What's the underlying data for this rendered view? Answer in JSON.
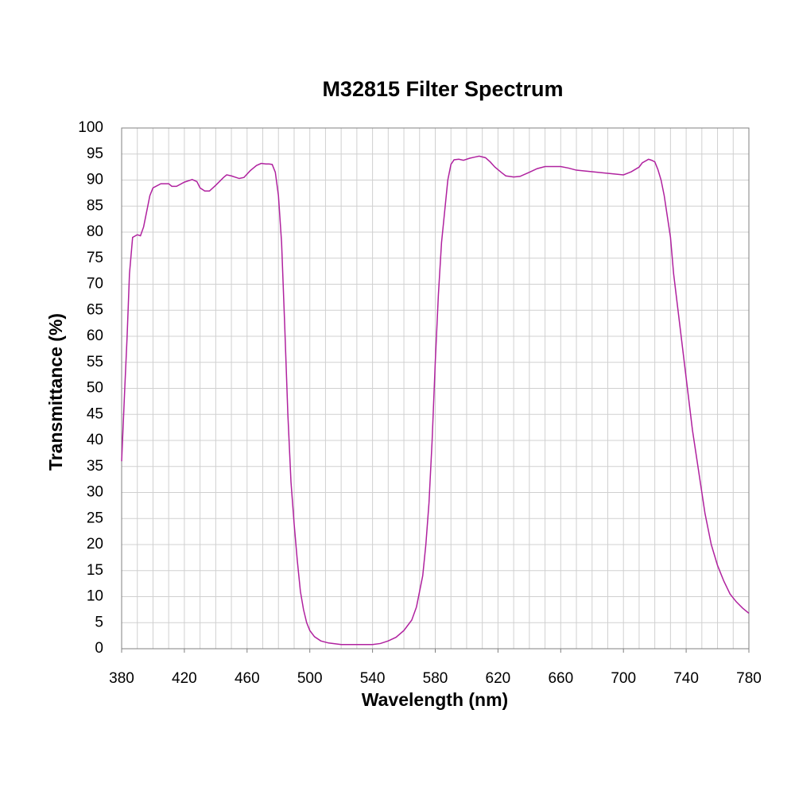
{
  "chart_data": {
    "type": "line",
    "title": "M32815 Filter Spectrum",
    "x_label": "Wavelength (nm)",
    "y_label": "Transmittance (%)",
    "xlim": [
      380,
      780
    ],
    "ylim": [
      0,
      100
    ],
    "xticks": [
      380,
      420,
      460,
      500,
      540,
      580,
      620,
      660,
      700,
      740,
      780
    ],
    "yticks": [
      0,
      5,
      10,
      15,
      20,
      25,
      30,
      35,
      40,
      45,
      50,
      55,
      60,
      65,
      70,
      75,
      80,
      85,
      90,
      95,
      100
    ],
    "xgrid": [
      380,
      390,
      400,
      410,
      420,
      430,
      440,
      450,
      460,
      470,
      480,
      490,
      500,
      510,
      520,
      530,
      540,
      550,
      560,
      570,
      580,
      590,
      600,
      610,
      620,
      630,
      640,
      650,
      660,
      670,
      680,
      690,
      700,
      710,
      720,
      730,
      740,
      750,
      760,
      770,
      780
    ],
    "grid": true,
    "series": [
      {
        "color": "#b0229f",
        "x": [
          380,
          382,
          383.5,
          385,
          387,
          390,
          392,
          394,
          396,
          398,
          400,
          405,
          410,
          412,
          415,
          420,
          425,
          428,
          430,
          433,
          436,
          440,
          445,
          447,
          450,
          455,
          458,
          462,
          466,
          469,
          472,
          474,
          476,
          478,
          480,
          482,
          484,
          486,
          488,
          490,
          492,
          494,
          496,
          498,
          500,
          503,
          507,
          512,
          520,
          530,
          540,
          545,
          550,
          555,
          560,
          565,
          568,
          570,
          572,
          574,
          576,
          578,
          580,
          582,
          584,
          586,
          588,
          590,
          592,
          595,
          598,
          602,
          605,
          608,
          612,
          615,
          618,
          622,
          625,
          630,
          634,
          640,
          645,
          650,
          660,
          665,
          670,
          680,
          690,
          700,
          705,
          710,
          712,
          716,
          718,
          720,
          722,
          724,
          726,
          728,
          730,
          732,
          734,
          736,
          738,
          740,
          742,
          744,
          746,
          748,
          750,
          752,
          754,
          756,
          758,
          760,
          764,
          768,
          772,
          776,
          780
        ],
        "values": [
          36,
          50,
          60,
          72,
          79,
          79.5,
          79.3,
          81,
          84,
          87,
          88.5,
          89.3,
          89.3,
          88.8,
          88.8,
          89.6,
          90.1,
          89.7,
          88.5,
          87.9,
          87.9,
          89,
          90.5,
          91,
          90.8,
          90.3,
          90.5,
          91.8,
          92.8,
          93.2,
          93.1,
          93.1,
          93,
          91.5,
          87,
          78,
          62,
          45,
          32,
          24,
          17,
          11,
          7.5,
          5,
          3.5,
          2.3,
          1.5,
          1.1,
          0.8,
          0.8,
          0.8,
          1,
          1.5,
          2.2,
          3.5,
          5.5,
          8,
          11,
          14,
          20,
          28,
          40,
          55,
          68,
          78,
          84,
          90,
          93,
          93.9,
          94,
          93.8,
          94.2,
          94.4,
          94.6,
          94.3,
          93.5,
          92.5,
          91.5,
          90.8,
          90.6,
          90.7,
          91.5,
          92.2,
          92.6,
          92.6,
          92.3,
          91.9,
          91.6,
          91.3,
          91,
          91.6,
          92.5,
          93.3,
          94,
          93.8,
          93.5,
          92,
          90,
          87,
          83,
          79,
          72,
          67,
          62,
          57,
          52,
          47,
          42,
          38,
          34,
          30,
          26,
          23,
          20,
          18,
          16,
          13,
          10.5,
          9,
          7.8,
          6.8
        ]
      }
    ]
  }
}
